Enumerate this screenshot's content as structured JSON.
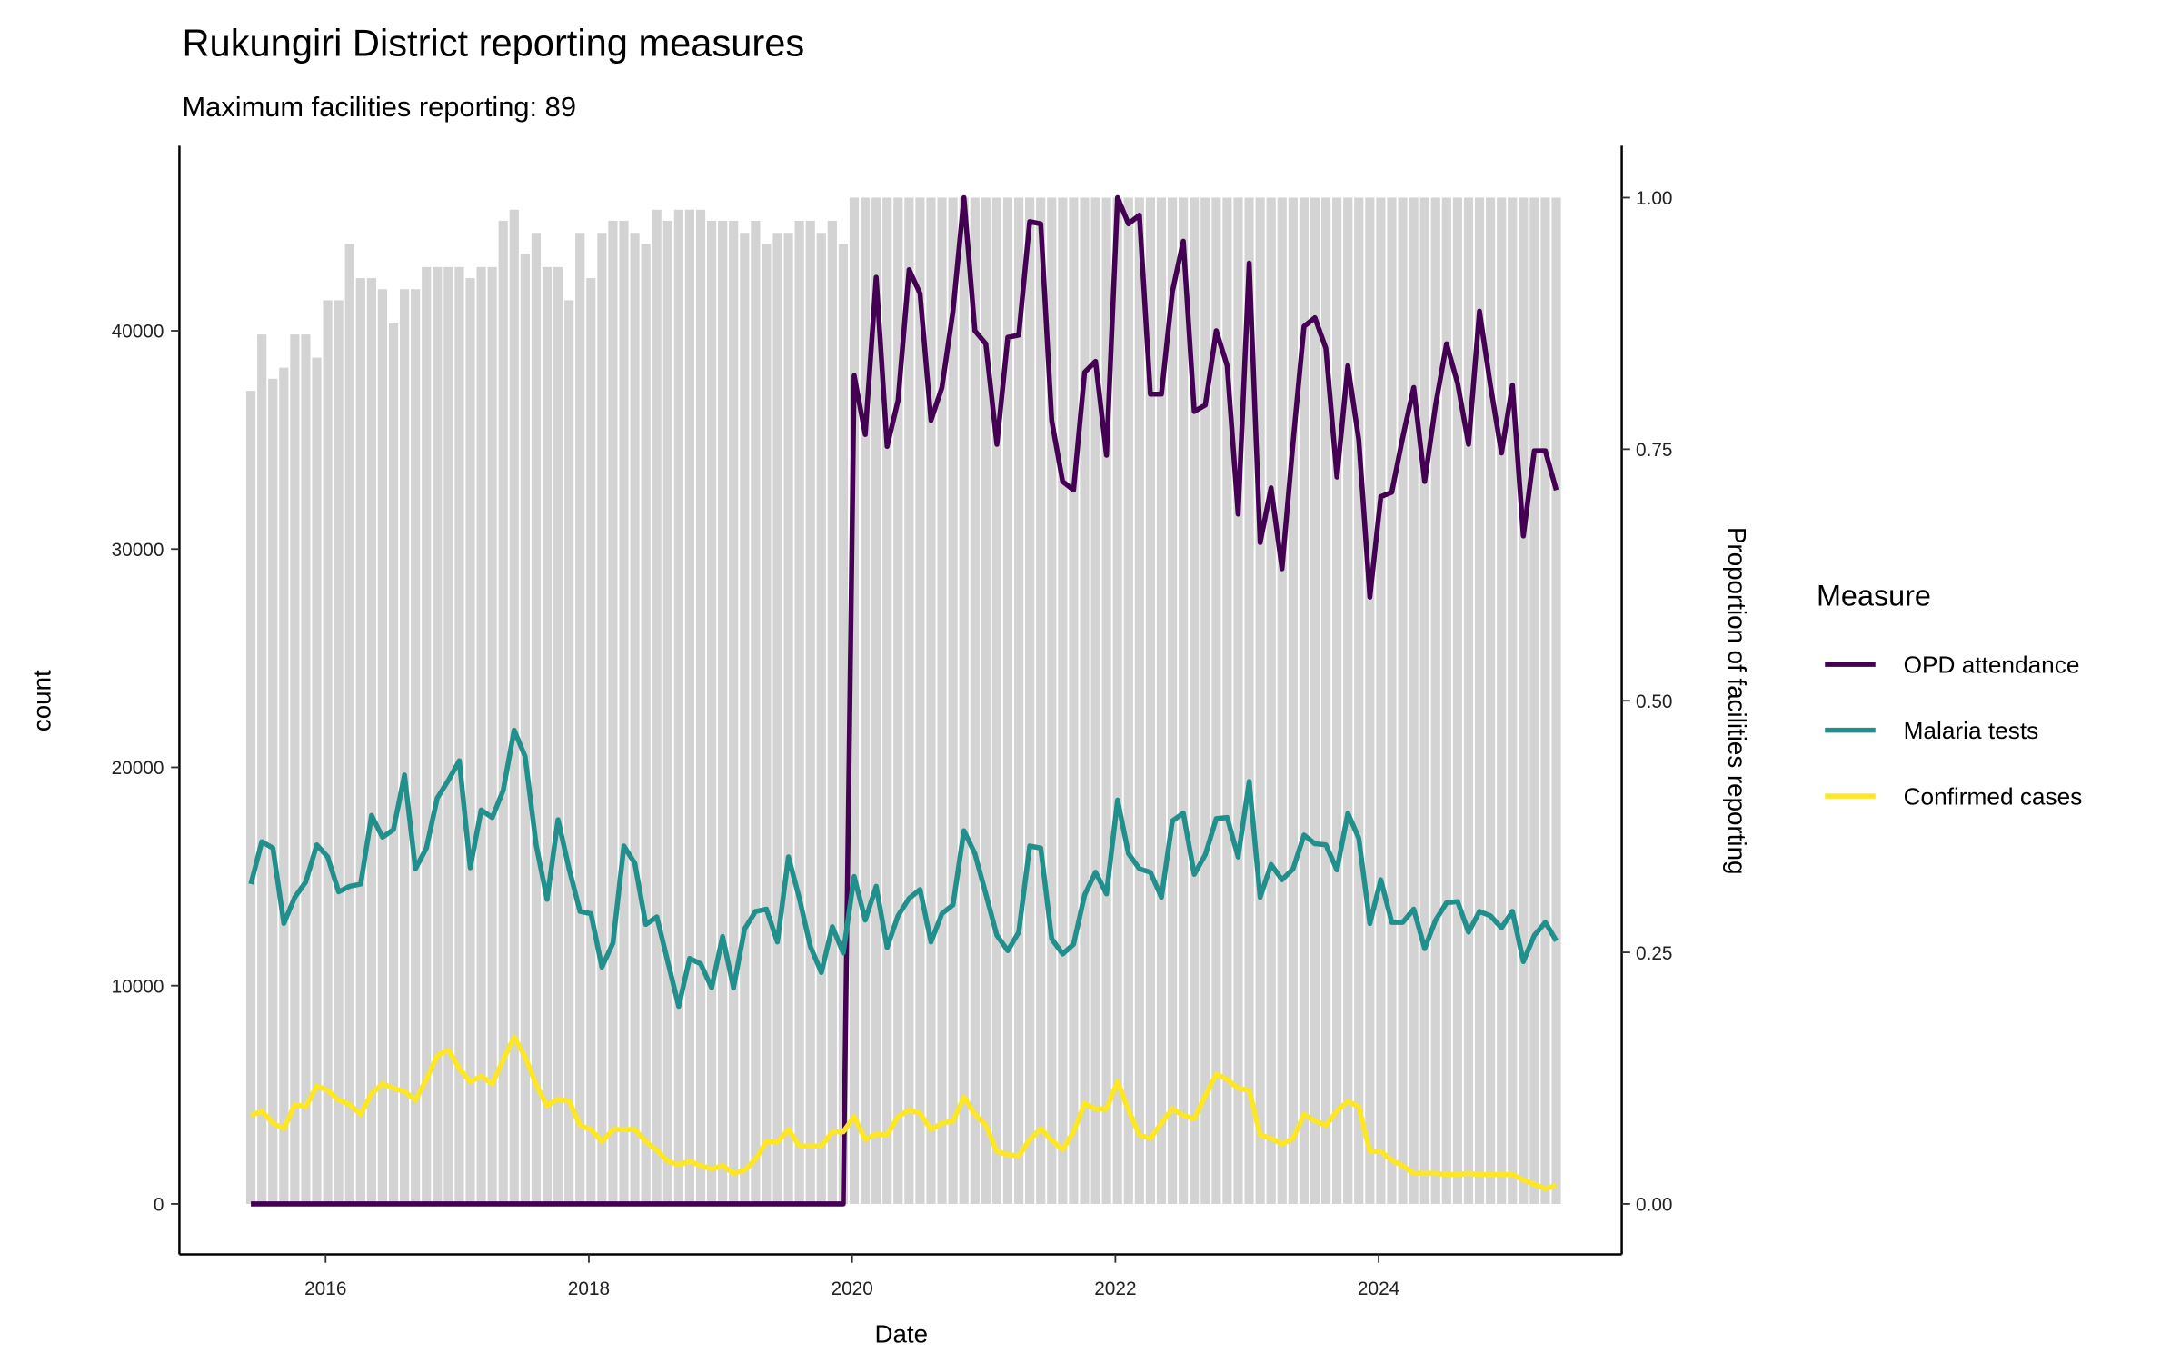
{
  "chart_data": {
    "type": "line",
    "title": "Rukungiri District reporting measures",
    "subtitle": "Maximum facilities reporting: 89",
    "xlabel": "Date",
    "ylabel": "count",
    "y2label": "Proportion of facilities reporting",
    "x_start": "2015-06",
    "x_end": "2025-05",
    "x_ticks": [
      "2016",
      "2018",
      "2020",
      "2022",
      "2024"
    ],
    "y_ticks": [
      "0",
      "10000",
      "20000",
      "30000",
      "40000"
    ],
    "y2_ticks": [
      "0.00",
      "0.25",
      "0.50",
      "0.75",
      "1.00"
    ],
    "ylim": [
      0,
      46000
    ],
    "y2lim": [
      0,
      1
    ],
    "grid": false,
    "legend": {
      "title": "Measure",
      "placement": "right"
    },
    "bars": {
      "name": "Proportion of facilities reporting",
      "color": "#D3D3D3",
      "values": [
        0.808,
        0.864,
        0.82,
        0.831,
        0.864,
        0.864,
        0.841,
        0.898,
        0.898,
        0.954,
        0.92,
        0.92,
        0.909,
        0.875,
        0.909,
        0.909,
        0.931,
        0.931,
        0.931,
        0.931,
        0.92,
        0.931,
        0.931,
        0.977,
        0.988,
        0.944,
        0.965,
        0.931,
        0.931,
        0.898,
        0.965,
        0.92,
        0.965,
        0.977,
        0.977,
        0.965,
        0.954,
        0.988,
        0.977,
        0.988,
        0.988,
        0.988,
        0.977,
        0.977,
        0.977,
        0.965,
        0.977,
        0.954,
        0.965,
        0.965,
        0.977,
        0.977,
        0.965,
        0.977,
        0.954,
        1,
        1,
        1,
        1,
        1,
        1,
        1,
        1,
        1,
        1,
        1,
        1,
        1,
        1,
        1,
        1,
        1,
        1,
        1,
        1,
        1,
        1,
        1,
        1,
        1,
        1,
        1,
        1,
        1,
        1,
        1,
        1,
        1,
        1,
        1,
        1,
        1,
        1,
        1,
        1,
        1,
        1,
        1,
        1,
        1,
        1,
        1,
        1,
        1,
        1,
        1,
        1,
        1,
        1,
        1,
        1,
        1,
        1,
        1,
        1,
        1,
        1,
        1,
        1,
        1
      ]
    },
    "series": [
      {
        "name": "OPD attendance",
        "color": "#440154",
        "values": [
          0,
          0,
          0,
          0,
          0,
          0,
          0,
          0,
          0,
          0,
          0,
          0,
          0,
          0,
          0,
          0,
          0,
          0,
          0,
          0,
          0,
          0,
          0,
          0,
          0,
          0,
          0,
          0,
          0,
          0,
          0,
          0,
          0,
          0,
          0,
          0,
          0,
          0,
          0,
          0,
          0,
          0,
          0,
          0,
          0,
          0,
          0,
          0,
          0,
          0,
          0,
          0,
          0,
          0,
          0,
          37950,
          35250,
          42450,
          34700,
          36800,
          42800,
          41700,
          35900,
          37400,
          40900,
          46100,
          40000,
          39400,
          34800,
          39700,
          39800,
          45000,
          44900,
          35900,
          33100,
          32700,
          38100,
          38600,
          34300,
          46100,
          44900,
          45300,
          37100,
          37100,
          41800,
          44100,
          36300,
          36600,
          40000,
          38400,
          31600,
          43100,
          30300,
          32800,
          29100,
          34900,
          40200,
          40600,
          39200,
          33300,
          38400,
          35000,
          27800,
          32400,
          32600,
          35100,
          37400,
          33100,
          36600,
          39400,
          37600,
          34800,
          40900,
          37500,
          34400,
          37500,
          30600,
          34500,
          34500,
          32700
        ]
      },
      {
        "name": "Malaria tests",
        "color": "#21908C",
        "values": [
          14650,
          16600,
          16300,
          12850,
          14050,
          14750,
          16450,
          15900,
          14300,
          14550,
          14650,
          17800,
          16800,
          17150,
          19650,
          15350,
          16300,
          18600,
          19400,
          20300,
          15400,
          18050,
          17700,
          18950,
          21700,
          20500,
          16450,
          13950,
          17600,
          15350,
          13400,
          13300,
          10850,
          11950,
          16400,
          15600,
          12800,
          13150,
          11100,
          9050,
          11250,
          11000,
          9900,
          12250,
          9900,
          12600,
          13400,
          13500,
          12000,
          15900,
          14000,
          11800,
          10600,
          12700,
          11500,
          15000,
          13000,
          14550,
          11750,
          13200,
          14000,
          14400,
          12000,
          13300,
          13700,
          17100,
          16050,
          14200,
          12300,
          11600,
          12450,
          16400,
          16300,
          12150,
          11450,
          11900,
          14150,
          15200,
          14200,
          18500,
          16050,
          15350,
          15200,
          14050,
          17550,
          17900,
          15100,
          16000,
          17650,
          17700,
          15900,
          19350,
          14050,
          15550,
          14850,
          15350,
          16900,
          16500,
          16450,
          15300,
          17900,
          16750,
          12850,
          14850,
          12900,
          12900,
          13500,
          11700,
          13000,
          13800,
          13850,
          12450,
          13400,
          13200,
          12650,
          13400,
          11100,
          12300,
          12900,
          12050
        ]
      },
      {
        "name": "Confirmed cases",
        "color": "#FDE725",
        "values": [
          4050,
          4250,
          3700,
          3450,
          4550,
          4450,
          5400,
          5200,
          4750,
          4550,
          4100,
          5050,
          5500,
          5300,
          5150,
          4750,
          5700,
          6800,
          7050,
          6200,
          5600,
          5850,
          5500,
          6600,
          7650,
          6750,
          5450,
          4500,
          4800,
          4700,
          3600,
          3400,
          2850,
          3400,
          3400,
          3400,
          2850,
          2450,
          1950,
          1800,
          1950,
          1750,
          1600,
          1750,
          1400,
          1550,
          2050,
          2850,
          2850,
          3400,
          2650,
          2650,
          2650,
          3300,
          3300,
          4000,
          2950,
          3200,
          3150,
          4000,
          4300,
          4150,
          3400,
          3700,
          3800,
          4900,
          4100,
          3600,
          2400,
          2250,
          2200,
          2950,
          3450,
          2900,
          2500,
          3300,
          4600,
          4350,
          4350,
          5600,
          4300,
          3150,
          3000,
          3700,
          4350,
          4050,
          3900,
          4950,
          5950,
          5700,
          5300,
          5200,
          3150,
          3000,
          2750,
          3000,
          4100,
          3800,
          3600,
          4250,
          4700,
          4450,
          2400,
          2400,
          2000,
          1750,
          1400,
          1400,
          1400,
          1350,
          1350,
          1400,
          1350,
          1350,
          1350,
          1350,
          1100,
          900,
          700,
          850
        ]
      }
    ]
  }
}
